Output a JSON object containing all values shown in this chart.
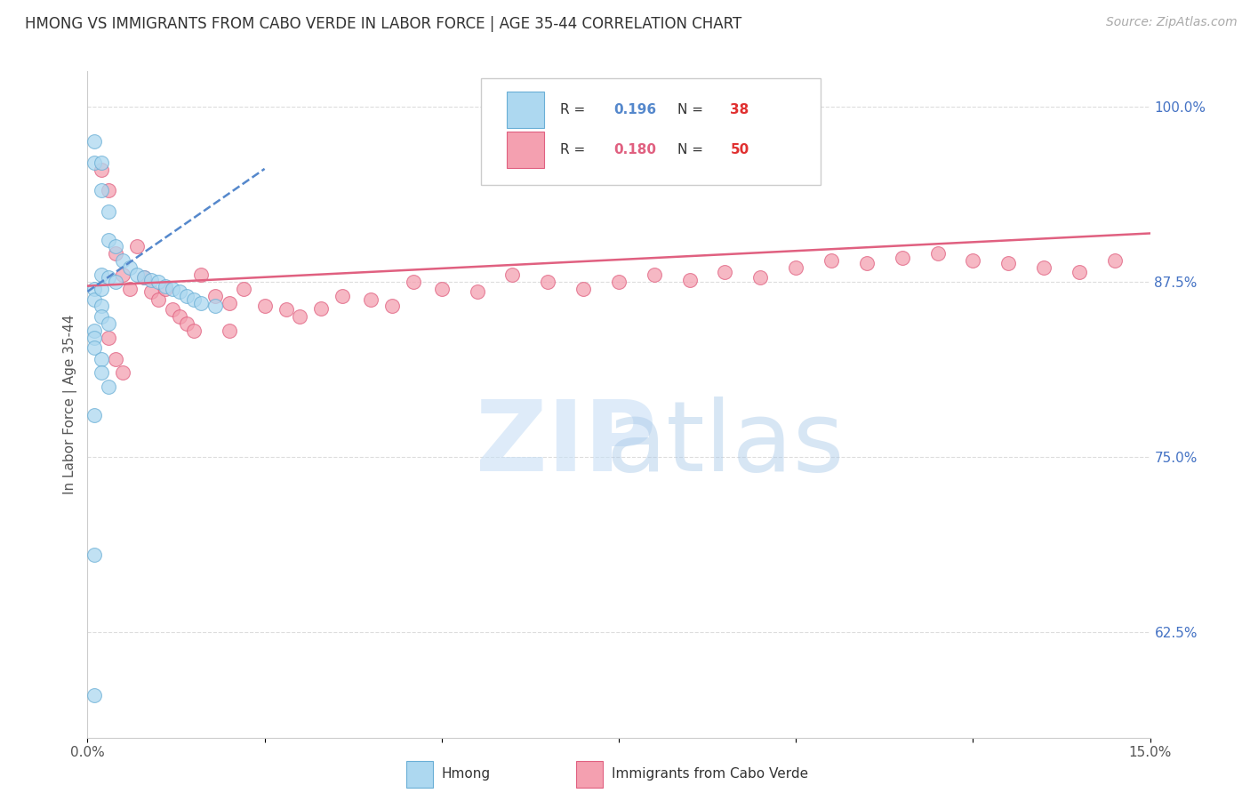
{
  "title": "HMONG VS IMMIGRANTS FROM CABO VERDE IN LABOR FORCE | AGE 35-44 CORRELATION CHART",
  "source": "Source: ZipAtlas.com",
  "ylabel": "In Labor Force | Age 35-44",
  "xlim": [
    0.0,
    0.15
  ],
  "ylim": [
    0.55,
    1.025
  ],
  "xticks": [
    0.0,
    0.025,
    0.05,
    0.075,
    0.1,
    0.125,
    0.15
  ],
  "xticklabels": [
    "0.0%",
    "",
    "",
    "",
    "",
    "",
    "15.0%"
  ],
  "yticks_right": [
    1.0,
    0.875,
    0.75,
    0.625
  ],
  "yticklabels_right": [
    "100.0%",
    "87.5%",
    "75.0%",
    "62.5%"
  ],
  "hmong_R": 0.196,
  "hmong_N": 38,
  "cabo_verde_R": 0.18,
  "cabo_verde_N": 50,
  "hmong_color": "#add8f0",
  "cabo_verde_color": "#f4a0b0",
  "hmong_edge_color": "#6aafd6",
  "cabo_verde_edge_color": "#e06080",
  "hmong_line_color": "#5588cc",
  "cabo_verde_line_color": "#e06080",
  "background_color": "#ffffff",
  "grid_color": "#dddddd",
  "hmong_x": [
    0.001,
    0.001,
    0.002,
    0.002,
    0.003,
    0.003,
    0.004,
    0.005,
    0.006,
    0.007,
    0.008,
    0.009,
    0.01,
    0.011,
    0.012,
    0.013,
    0.014,
    0.015,
    0.016,
    0.018,
    0.002,
    0.003,
    0.004,
    0.001,
    0.001,
    0.002,
    0.002,
    0.003,
    0.001,
    0.001,
    0.001,
    0.002,
    0.002,
    0.003,
    0.001,
    0.001,
    0.001,
    0.002
  ],
  "hmong_y": [
    0.975,
    0.96,
    0.96,
    0.94,
    0.925,
    0.905,
    0.9,
    0.89,
    0.885,
    0.88,
    0.878,
    0.876,
    0.875,
    0.872,
    0.87,
    0.868,
    0.865,
    0.862,
    0.86,
    0.858,
    0.88,
    0.878,
    0.875,
    0.87,
    0.862,
    0.858,
    0.85,
    0.845,
    0.84,
    0.835,
    0.828,
    0.82,
    0.81,
    0.8,
    0.78,
    0.68,
    0.58,
    0.87
  ],
  "cabo_x": [
    0.002,
    0.003,
    0.004,
    0.005,
    0.006,
    0.007,
    0.008,
    0.009,
    0.01,
    0.011,
    0.012,
    0.013,
    0.014,
    0.015,
    0.016,
    0.018,
    0.02,
    0.022,
    0.025,
    0.028,
    0.03,
    0.033,
    0.036,
    0.04,
    0.043,
    0.046,
    0.05,
    0.055,
    0.06,
    0.065,
    0.07,
    0.075,
    0.08,
    0.085,
    0.09,
    0.095,
    0.1,
    0.105,
    0.11,
    0.115,
    0.12,
    0.125,
    0.13,
    0.135,
    0.14,
    0.145,
    0.003,
    0.004,
    0.005,
    0.02
  ],
  "cabo_y": [
    0.955,
    0.94,
    0.895,
    0.88,
    0.87,
    0.9,
    0.878,
    0.868,
    0.862,
    0.87,
    0.855,
    0.85,
    0.845,
    0.84,
    0.88,
    0.865,
    0.86,
    0.87,
    0.858,
    0.855,
    0.85,
    0.856,
    0.865,
    0.862,
    0.858,
    0.875,
    0.87,
    0.868,
    0.88,
    0.875,
    0.87,
    0.875,
    0.88,
    0.876,
    0.882,
    0.878,
    0.885,
    0.89,
    0.888,
    0.892,
    0.895,
    0.89,
    0.888,
    0.885,
    0.882,
    0.89,
    0.835,
    0.82,
    0.81,
    0.84
  ]
}
